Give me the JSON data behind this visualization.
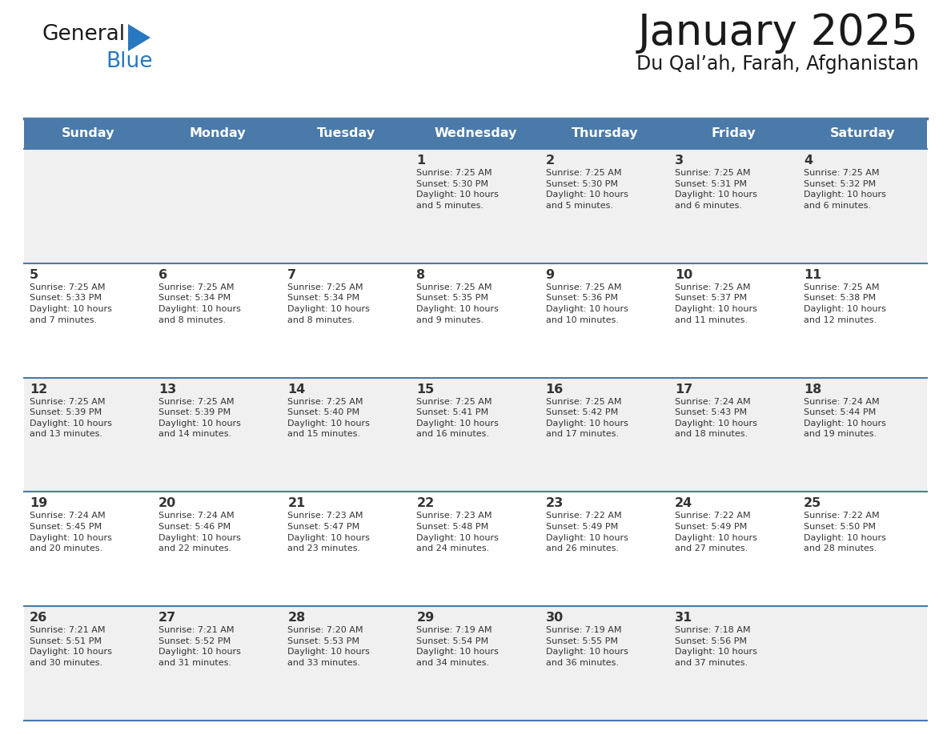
{
  "title": "January 2025",
  "subtitle": "Du Qal’ah, Farah, Afghanistan",
  "days_of_week": [
    "Sunday",
    "Monday",
    "Tuesday",
    "Wednesday",
    "Thursday",
    "Friday",
    "Saturday"
  ],
  "header_bg": "#4a7aaa",
  "header_text": "#ffffff",
  "cell_bg_odd": "#f0f0f0",
  "cell_bg_even": "#ffffff",
  "divider_color": "#4a7aaa",
  "title_color": "#1a1a1a",
  "text_color": "#333333",
  "day_num_color": "#333333",
  "logo_general_color": "#1a1a1a",
  "logo_blue_color": "#2878c0",
  "weeks": [
    [
      {
        "day": null,
        "info": null
      },
      {
        "day": null,
        "info": null
      },
      {
        "day": null,
        "info": null
      },
      {
        "day": 1,
        "info": "Sunrise: 7:25 AM\nSunset: 5:30 PM\nDaylight: 10 hours\nand 5 minutes."
      },
      {
        "day": 2,
        "info": "Sunrise: 7:25 AM\nSunset: 5:30 PM\nDaylight: 10 hours\nand 5 minutes."
      },
      {
        "day": 3,
        "info": "Sunrise: 7:25 AM\nSunset: 5:31 PM\nDaylight: 10 hours\nand 6 minutes."
      },
      {
        "day": 4,
        "info": "Sunrise: 7:25 AM\nSunset: 5:32 PM\nDaylight: 10 hours\nand 6 minutes."
      }
    ],
    [
      {
        "day": 5,
        "info": "Sunrise: 7:25 AM\nSunset: 5:33 PM\nDaylight: 10 hours\nand 7 minutes."
      },
      {
        "day": 6,
        "info": "Sunrise: 7:25 AM\nSunset: 5:34 PM\nDaylight: 10 hours\nand 8 minutes."
      },
      {
        "day": 7,
        "info": "Sunrise: 7:25 AM\nSunset: 5:34 PM\nDaylight: 10 hours\nand 8 minutes."
      },
      {
        "day": 8,
        "info": "Sunrise: 7:25 AM\nSunset: 5:35 PM\nDaylight: 10 hours\nand 9 minutes."
      },
      {
        "day": 9,
        "info": "Sunrise: 7:25 AM\nSunset: 5:36 PM\nDaylight: 10 hours\nand 10 minutes."
      },
      {
        "day": 10,
        "info": "Sunrise: 7:25 AM\nSunset: 5:37 PM\nDaylight: 10 hours\nand 11 minutes."
      },
      {
        "day": 11,
        "info": "Sunrise: 7:25 AM\nSunset: 5:38 PM\nDaylight: 10 hours\nand 12 minutes."
      }
    ],
    [
      {
        "day": 12,
        "info": "Sunrise: 7:25 AM\nSunset: 5:39 PM\nDaylight: 10 hours\nand 13 minutes."
      },
      {
        "day": 13,
        "info": "Sunrise: 7:25 AM\nSunset: 5:39 PM\nDaylight: 10 hours\nand 14 minutes."
      },
      {
        "day": 14,
        "info": "Sunrise: 7:25 AM\nSunset: 5:40 PM\nDaylight: 10 hours\nand 15 minutes."
      },
      {
        "day": 15,
        "info": "Sunrise: 7:25 AM\nSunset: 5:41 PM\nDaylight: 10 hours\nand 16 minutes."
      },
      {
        "day": 16,
        "info": "Sunrise: 7:25 AM\nSunset: 5:42 PM\nDaylight: 10 hours\nand 17 minutes."
      },
      {
        "day": 17,
        "info": "Sunrise: 7:24 AM\nSunset: 5:43 PM\nDaylight: 10 hours\nand 18 minutes."
      },
      {
        "day": 18,
        "info": "Sunrise: 7:24 AM\nSunset: 5:44 PM\nDaylight: 10 hours\nand 19 minutes."
      }
    ],
    [
      {
        "day": 19,
        "info": "Sunrise: 7:24 AM\nSunset: 5:45 PM\nDaylight: 10 hours\nand 20 minutes."
      },
      {
        "day": 20,
        "info": "Sunrise: 7:24 AM\nSunset: 5:46 PM\nDaylight: 10 hours\nand 22 minutes."
      },
      {
        "day": 21,
        "info": "Sunrise: 7:23 AM\nSunset: 5:47 PM\nDaylight: 10 hours\nand 23 minutes."
      },
      {
        "day": 22,
        "info": "Sunrise: 7:23 AM\nSunset: 5:48 PM\nDaylight: 10 hours\nand 24 minutes."
      },
      {
        "day": 23,
        "info": "Sunrise: 7:22 AM\nSunset: 5:49 PM\nDaylight: 10 hours\nand 26 minutes."
      },
      {
        "day": 24,
        "info": "Sunrise: 7:22 AM\nSunset: 5:49 PM\nDaylight: 10 hours\nand 27 minutes."
      },
      {
        "day": 25,
        "info": "Sunrise: 7:22 AM\nSunset: 5:50 PM\nDaylight: 10 hours\nand 28 minutes."
      }
    ],
    [
      {
        "day": 26,
        "info": "Sunrise: 7:21 AM\nSunset: 5:51 PM\nDaylight: 10 hours\nand 30 minutes."
      },
      {
        "day": 27,
        "info": "Sunrise: 7:21 AM\nSunset: 5:52 PM\nDaylight: 10 hours\nand 31 minutes."
      },
      {
        "day": 28,
        "info": "Sunrise: 7:20 AM\nSunset: 5:53 PM\nDaylight: 10 hours\nand 33 minutes."
      },
      {
        "day": 29,
        "info": "Sunrise: 7:19 AM\nSunset: 5:54 PM\nDaylight: 10 hours\nand 34 minutes."
      },
      {
        "day": 30,
        "info": "Sunrise: 7:19 AM\nSunset: 5:55 PM\nDaylight: 10 hours\nand 36 minutes."
      },
      {
        "day": 31,
        "info": "Sunrise: 7:18 AM\nSunset: 5:56 PM\nDaylight: 10 hours\nand 37 minutes."
      },
      {
        "day": null,
        "info": null
      }
    ]
  ]
}
